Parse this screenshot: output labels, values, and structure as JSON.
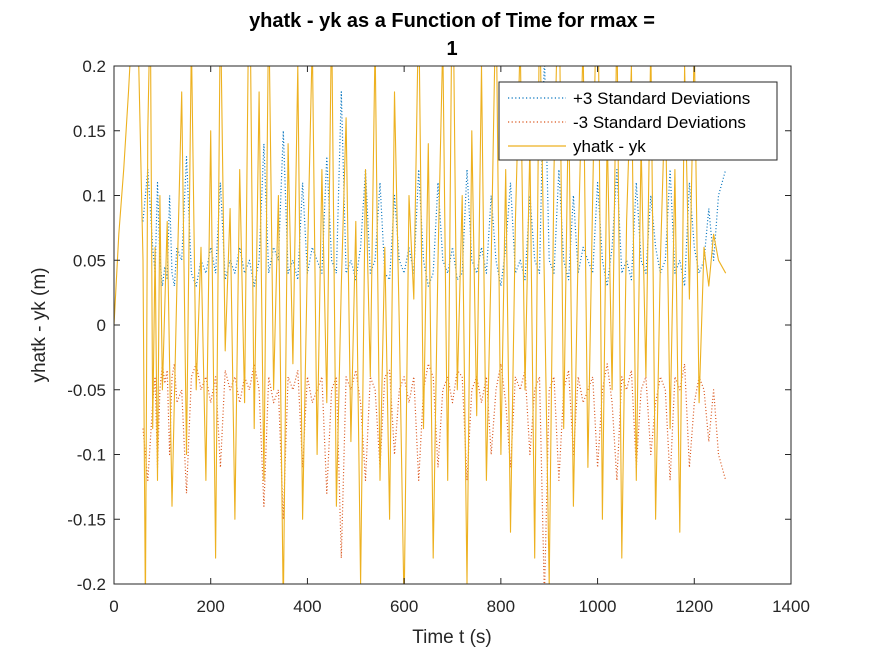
{
  "chart_data": {
    "type": "line",
    "title_line1": "yhatk - yk as a Function of Time for rmax =",
    "title_line2": "1",
    "xlabel": "Time t (s)",
    "ylabel": "yhatk - yk (m)",
    "xlim": [
      0,
      1400
    ],
    "ylim": [
      -0.2,
      0.2
    ],
    "x_ticks": [
      0,
      200,
      400,
      600,
      800,
      1000,
      1200,
      1400
    ],
    "y_ticks": [
      -0.2,
      -0.15,
      -0.1,
      -0.05,
      0,
      0.05,
      0.1,
      0.15,
      0.2
    ],
    "x_tick_labels": [
      "0",
      "200",
      "400",
      "600",
      "800",
      "1000",
      "1200",
      "1400"
    ],
    "y_tick_labels": [
      "-0.2",
      "-0.15",
      "-0.1",
      "-0.05",
      "0",
      "0.05",
      "0.1",
      "0.15",
      "0.2"
    ],
    "grid": false,
    "legend_position": "top-right",
    "series": [
      {
        "name": "+3 Standard Deviations",
        "color": "#0072BD",
        "style": "dotted",
        "x": [
          60,
          70,
          75,
          80,
          85,
          90,
          95,
          100,
          105,
          110,
          115,
          120,
          125,
          130,
          140,
          150,
          160,
          170,
          180,
          190,
          200,
          210,
          220,
          230,
          240,
          250,
          260,
          270,
          280,
          290,
          300,
          310,
          320,
          330,
          340,
          350,
          360,
          370,
          380,
          390,
          400,
          410,
          420,
          430,
          440,
          450,
          460,
          470,
          480,
          490,
          500,
          510,
          520,
          530,
          540,
          550,
          560,
          570,
          580,
          590,
          600,
          610,
          620,
          630,
          640,
          650,
          660,
          670,
          680,
          690,
          700,
          710,
          720,
          730,
          740,
          750,
          760,
          770,
          780,
          790,
          800,
          810,
          820,
          830,
          840,
          850,
          860,
          870,
          880,
          890,
          900,
          910,
          920,
          930,
          940,
          950,
          960,
          970,
          980,
          990,
          1000,
          1010,
          1020,
          1030,
          1040,
          1050,
          1060,
          1070,
          1080,
          1090,
          1100,
          1110,
          1120,
          1130,
          1140,
          1150,
          1160,
          1170,
          1180,
          1190,
          1200,
          1210,
          1220,
          1230,
          1240,
          1250,
          1265
        ],
        "values": [
          0.08,
          0.12,
          0.09,
          0.06,
          0.04,
          0.11,
          0.05,
          0.03,
          0.045,
          0.035,
          0.1,
          0.04,
          0.03,
          0.06,
          0.05,
          0.13,
          0.04,
          0.03,
          0.05,
          0.04,
          0.06,
          0.04,
          0.11,
          0.035,
          0.05,
          0.04,
          0.06,
          0.04,
          0.05,
          0.03,
          0.05,
          0.14,
          0.04,
          0.06,
          0.05,
          0.15,
          0.04,
          0.05,
          0.035,
          0.11,
          0.04,
          0.06,
          0.05,
          0.04,
          0.13,
          0.05,
          0.04,
          0.18,
          0.04,
          0.05,
          0.035,
          0.06,
          0.12,
          0.04,
          0.05,
          0.11,
          0.04,
          0.035,
          0.1,
          0.05,
          0.04,
          0.06,
          0.04,
          0.12,
          0.05,
          0.03,
          0.04,
          0.11,
          0.05,
          0.04,
          0.06,
          0.035,
          0.04,
          0.12,
          0.05,
          0.04,
          0.06,
          0.04,
          0.1,
          0.05,
          0.03,
          0.06,
          0.11,
          0.04,
          0.05,
          0.035,
          0.1,
          0.05,
          0.04,
          0.21,
          0.05,
          0.04,
          0.12,
          0.05,
          0.035,
          0.1,
          0.04,
          0.06,
          0.05,
          0.04,
          0.11,
          0.05,
          0.03,
          0.06,
          0.12,
          0.04,
          0.05,
          0.035,
          0.11,
          0.05,
          0.04,
          0.1,
          0.06,
          0.04,
          0.05,
          0.12,
          0.04,
          0.05,
          0.03,
          0.11,
          0.06,
          0.04,
          0.05,
          0.09,
          0.05,
          0.1,
          0.12
        ]
      },
      {
        "name": "-3 Standard Deviations",
        "color": "#D95319",
        "style": "dotted",
        "x": [
          60,
          70,
          75,
          80,
          85,
          90,
          95,
          100,
          105,
          110,
          115,
          120,
          125,
          130,
          140,
          150,
          160,
          170,
          180,
          190,
          200,
          210,
          220,
          230,
          240,
          250,
          260,
          270,
          280,
          290,
          300,
          310,
          320,
          330,
          340,
          350,
          360,
          370,
          380,
          390,
          400,
          410,
          420,
          430,
          440,
          450,
          460,
          470,
          480,
          490,
          500,
          510,
          520,
          530,
          540,
          550,
          560,
          570,
          580,
          590,
          600,
          610,
          620,
          630,
          640,
          650,
          660,
          670,
          680,
          690,
          700,
          710,
          720,
          730,
          740,
          750,
          760,
          770,
          780,
          790,
          800,
          810,
          820,
          830,
          840,
          850,
          860,
          870,
          880,
          890,
          900,
          910,
          920,
          930,
          940,
          950,
          960,
          970,
          980,
          990,
          1000,
          1010,
          1020,
          1030,
          1040,
          1050,
          1060,
          1070,
          1080,
          1090,
          1100,
          1110,
          1120,
          1130,
          1140,
          1150,
          1160,
          1170,
          1180,
          1190,
          1200,
          1210,
          1220,
          1230,
          1240,
          1250,
          1265
        ],
        "values": [
          -0.08,
          -0.12,
          -0.09,
          -0.06,
          -0.04,
          -0.11,
          -0.05,
          -0.03,
          -0.045,
          -0.035,
          -0.1,
          -0.04,
          -0.03,
          -0.06,
          -0.05,
          -0.13,
          -0.04,
          -0.03,
          -0.05,
          -0.04,
          -0.06,
          -0.04,
          -0.11,
          -0.035,
          -0.05,
          -0.04,
          -0.06,
          -0.04,
          -0.05,
          -0.03,
          -0.05,
          -0.14,
          -0.04,
          -0.06,
          -0.05,
          -0.15,
          -0.04,
          -0.05,
          -0.035,
          -0.11,
          -0.04,
          -0.06,
          -0.05,
          -0.04,
          -0.13,
          -0.05,
          -0.04,
          -0.18,
          -0.04,
          -0.05,
          -0.035,
          -0.06,
          -0.12,
          -0.04,
          -0.05,
          -0.11,
          -0.04,
          -0.035,
          -0.1,
          -0.05,
          -0.04,
          -0.06,
          -0.04,
          -0.12,
          -0.05,
          -0.03,
          -0.04,
          -0.11,
          -0.05,
          -0.04,
          -0.06,
          -0.035,
          -0.04,
          -0.12,
          -0.05,
          -0.04,
          -0.06,
          -0.04,
          -0.1,
          -0.05,
          -0.03,
          -0.06,
          -0.11,
          -0.04,
          -0.05,
          -0.035,
          -0.1,
          -0.05,
          -0.04,
          -0.21,
          -0.05,
          -0.04,
          -0.12,
          -0.05,
          -0.035,
          -0.1,
          -0.04,
          -0.06,
          -0.05,
          -0.04,
          -0.11,
          -0.05,
          -0.03,
          -0.06,
          -0.12,
          -0.04,
          -0.05,
          -0.035,
          -0.11,
          -0.05,
          -0.04,
          -0.1,
          -0.06,
          -0.04,
          -0.05,
          -0.12,
          -0.04,
          -0.05,
          -0.03,
          -0.11,
          -0.06,
          -0.04,
          -0.05,
          -0.09,
          -0.05,
          -0.1,
          -0.12
        ]
      },
      {
        "name": "yhatk - yk",
        "color": "#EDB120",
        "style": "solid",
        "x": [
          0,
          10,
          20,
          30,
          40,
          50,
          60,
          65,
          70,
          75,
          80,
          85,
          90,
          95,
          100,
          110,
          120,
          130,
          140,
          150,
          160,
          170,
          180,
          190,
          200,
          210,
          220,
          230,
          240,
          250,
          260,
          270,
          280,
          290,
          300,
          310,
          320,
          330,
          340,
          350,
          360,
          370,
          380,
          390,
          400,
          410,
          420,
          430,
          440,
          450,
          460,
          470,
          480,
          490,
          500,
          510,
          520,
          530,
          540,
          550,
          560,
          570,
          580,
          590,
          600,
          610,
          620,
          630,
          640,
          650,
          660,
          670,
          680,
          690,
          700,
          710,
          720,
          730,
          740,
          750,
          760,
          770,
          780,
          790,
          800,
          810,
          820,
          830,
          840,
          850,
          860,
          870,
          880,
          890,
          900,
          910,
          920,
          930,
          940,
          950,
          960,
          970,
          980,
          990,
          1000,
          1010,
          1020,
          1030,
          1040,
          1050,
          1060,
          1070,
          1080,
          1090,
          1100,
          1110,
          1120,
          1130,
          1140,
          1150,
          1160,
          1170,
          1180,
          1190,
          1200,
          1210,
          1220,
          1230,
          1240,
          1250,
          1265
        ],
        "values": [
          0.0,
          0.07,
          0.12,
          0.18,
          0.25,
          0.22,
          0.05,
          -0.22,
          0.15,
          0.25,
          -0.08,
          0.06,
          -0.12,
          0.1,
          -0.05,
          0.08,
          -0.14,
          0.03,
          0.18,
          -0.1,
          0.22,
          -0.05,
          0.06,
          -0.12,
          0.15,
          -0.18,
          0.25,
          -0.02,
          0.09,
          -0.15,
          0.12,
          -0.06,
          0.3,
          -0.08,
          0.18,
          -0.12,
          0.25,
          -0.05,
          0.1,
          -0.22,
          0.14,
          -0.03,
          0.2,
          -0.15,
          0.05,
          0.22,
          -0.1,
          0.12,
          -0.06,
          0.24,
          -0.14,
          0.03,
          0.16,
          -0.09,
          0.08,
          -0.2,
          0.12,
          -0.04,
          0.22,
          -0.12,
          0.06,
          -0.15,
          0.18,
          0.0,
          -0.22,
          0.1,
          0.02,
          0.25,
          -0.08,
          0.14,
          -0.18,
          0.05,
          0.22,
          -0.12,
          0.3,
          -0.05,
          0.1,
          -0.2,
          0.15,
          -0.07,
          0.2,
          -0.12,
          0.05,
          0.26,
          -0.1,
          0.12,
          -0.16,
          0.08,
          0.22,
          -0.05,
          0.14,
          -0.18,
          0.25,
          0.03,
          -0.2,
          0.12,
          0.28,
          -0.08,
          0.18,
          -0.14,
          0.06,
          0.22,
          -0.11,
          0.1,
          0.3,
          -0.15,
          0.15,
          -0.05,
          0.24,
          -0.18,
          0.08,
          0.2,
          -0.12,
          0.14,
          -0.04,
          0.22,
          -0.15,
          0.05,
          0.18,
          -0.08,
          0.12,
          -0.16,
          0.2,
          0.02,
          0.22,
          -0.06,
          0.06,
          0.03,
          0.07,
          0.05,
          0.04
        ]
      }
    ]
  }
}
